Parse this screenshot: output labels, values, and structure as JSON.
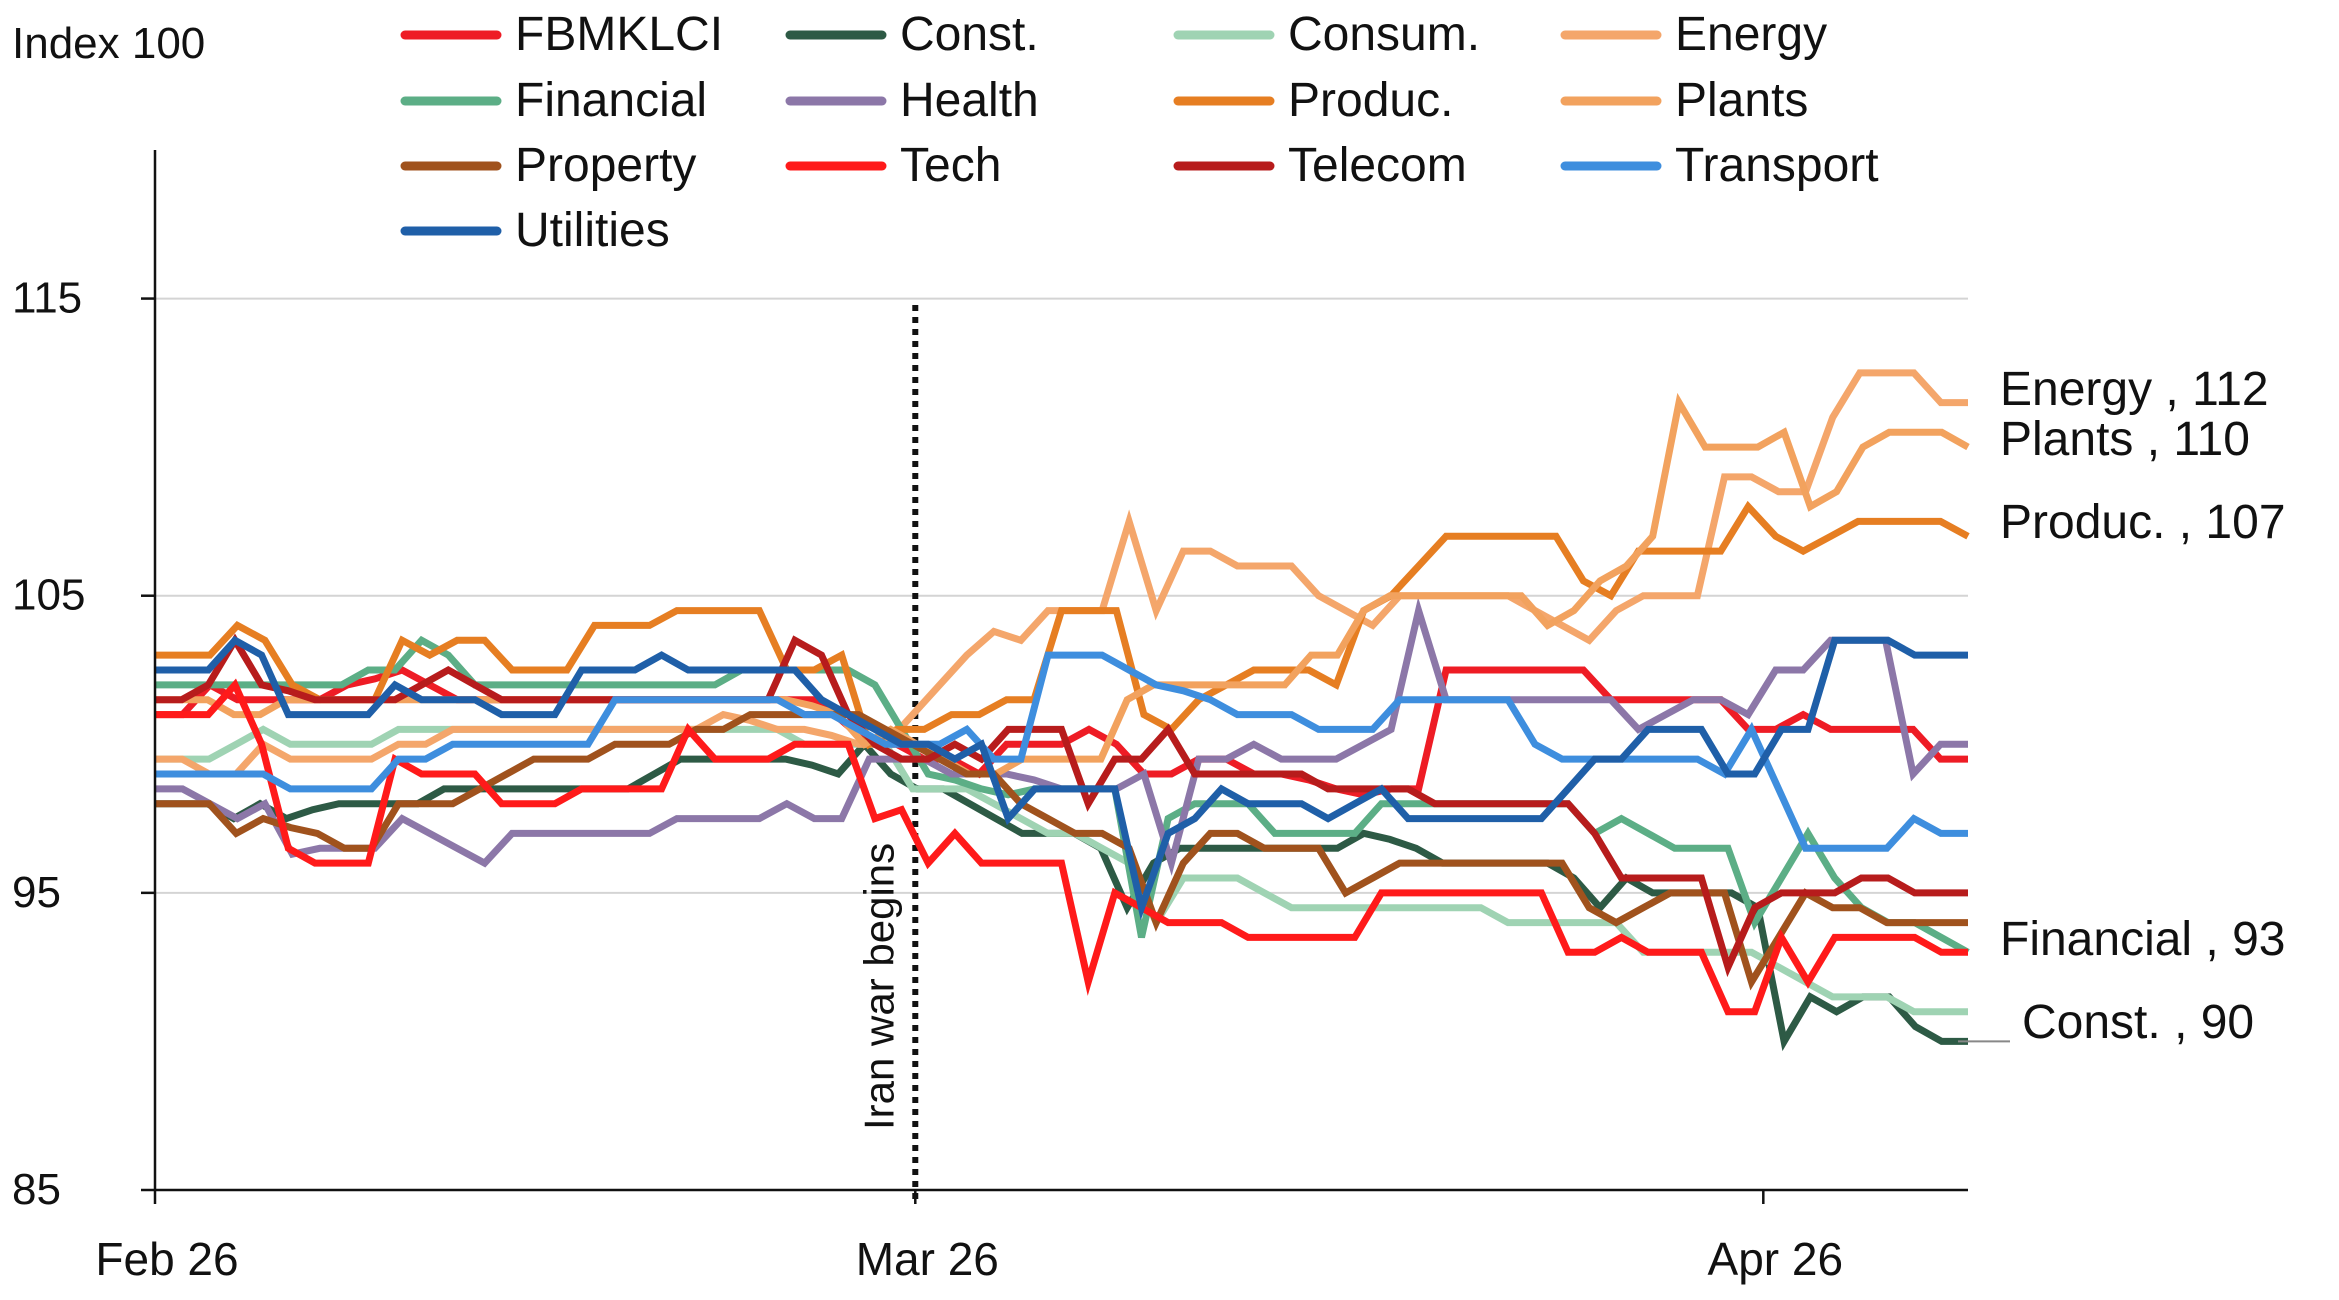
{
  "chart_data": {
    "type": "line",
    "unit_label": "Index 100",
    "y_axis": {
      "ylim": [
        85,
        120
      ],
      "ticks": [
        85,
        95,
        105,
        115
      ],
      "grid": true
    },
    "x_axis": {
      "tick_labels": [
        {
          "label": "Feb 26",
          "x": 0
        },
        {
          "label": "Mar 26",
          "x": 26
        },
        {
          "label": "Apr 26",
          "x": 55
        }
      ],
      "xlim": [
        0,
        62
      ]
    },
    "annotation": {
      "label": "Iran war begins",
      "x": 26,
      "style": "dotted"
    },
    "series": [
      {
        "name": "FBMKLCI",
        "color": "#ee1c25",
        "values": [
          101,
          101,
          102,
          101.5,
          101.5,
          101.5,
          101.5,
          102,
          102.2,
          102.5,
          102,
          101.5,
          101.5,
          101.5,
          101.5,
          101.5,
          101.5,
          101.5,
          101.5,
          101.5,
          101.5,
          101.5,
          101.5,
          101.5,
          101.5,
          100.8,
          100,
          100,
          99.5,
          99.5,
          99,
          100,
          100,
          100,
          100.5,
          100,
          99,
          99,
          99.5,
          99.5,
          99,
          99,
          98.8,
          98.5,
          98.3,
          98.5,
          98.5,
          102.5,
          102.5,
          102.5,
          102.5,
          102.5,
          102.5,
          101.5,
          101.5,
          101.5,
          101.5,
          101.5,
          100.5,
          100.5,
          101,
          100.5,
          100.5,
          100.5,
          100.5,
          99.5,
          99.5
        ]
      },
      {
        "name": "Const.",
        "color": "#2d5a45",
        "values": [
          98,
          98,
          98,
          97.5,
          98,
          97.5,
          97.8,
          98,
          98,
          98,
          98,
          98.5,
          98.5,
          98.5,
          98.5,
          98.5,
          98.5,
          98.5,
          98.5,
          99,
          99.5,
          99.5,
          99.5,
          99.5,
          99.5,
          99.3,
          99,
          100,
          99,
          98.5,
          98.5,
          98,
          97.5,
          97,
          97,
          97,
          96.5,
          94.5,
          96,
          96.5,
          96.5,
          96.5,
          96.5,
          96.5,
          96.5,
          96.5,
          97,
          96.8,
          96.5,
          96,
          96,
          96,
          96,
          96,
          95.5,
          94.5,
          95.5,
          95,
          95,
          95,
          95,
          94.5,
          90,
          91.5,
          91,
          91.5,
          91.5,
          90.5,
          90,
          90
        ]
      },
      {
        "name": "Consum.",
        "color": "#9fd3b3",
        "values": [
          99.5,
          99.5,
          99.5,
          100,
          100.5,
          100,
          100,
          100,
          100,
          100.5,
          100.5,
          100.5,
          100.5,
          100.5,
          100.5,
          100.5,
          100.5,
          100.5,
          100.5,
          100.5,
          100.5,
          100.5,
          100.5,
          100.5,
          100,
          100,
          100,
          100,
          98.5,
          98.5,
          98.5,
          98,
          97.5,
          97,
          97,
          96.5,
          96,
          94,
          95.5,
          95.5,
          95.5,
          95,
          94.5,
          94.5,
          94.5,
          94.5,
          94.5,
          94.5,
          94.5,
          94.5,
          94,
          94,
          94,
          94,
          94,
          93,
          93,
          93,
          93,
          93,
          92.5,
          92,
          91.5,
          91.5,
          91.5,
          91,
          91,
          91
        ]
      },
      {
        "name": "Energy",
        "color": "#f4a66b",
        "values": [
          99.5,
          99.5,
          99,
          99,
          100,
          99.5,
          99.5,
          99.5,
          99.5,
          100,
          100,
          100.5,
          100.5,
          100.5,
          100.5,
          100.5,
          100.5,
          100.5,
          100.5,
          100.5,
          100.5,
          101,
          100.8,
          100.5,
          100.5,
          100.3,
          100,
          100,
          101,
          102,
          103,
          103.8,
          103.5,
          104.5,
          104.5,
          104.5,
          107.5,
          104.5,
          106.5,
          106.5,
          106,
          106,
          106,
          105,
          104.5,
          104,
          105,
          105,
          105,
          105,
          105,
          104.5,
          104,
          103.5,
          104.5,
          105,
          105,
          105,
          109,
          109,
          108.5,
          108.5,
          111,
          112.5,
          112.5,
          112.5,
          111.5,
          111.5
        ]
      },
      {
        "name": "Financial",
        "color": "#5cae86",
        "values": [
          102,
          102,
          102,
          102,
          102,
          102,
          102,
          102,
          102.5,
          102.5,
          103.5,
          103,
          102,
          102,
          102,
          102,
          102,
          102,
          102,
          102,
          102,
          102,
          102.5,
          102.5,
          102.5,
          102.5,
          102.5,
          102,
          100.5,
          99,
          98.8,
          98.5,
          98.3,
          98.5,
          98.5,
          98.5,
          98.5,
          93.5,
          97.5,
          98,
          98,
          98,
          97,
          97,
          97,
          97,
          98,
          98,
          98,
          98,
          98,
          98,
          98,
          98,
          97,
          97.5,
          97,
          96.5,
          96.5,
          96.5,
          94,
          95.5,
          97,
          95.5,
          94.5,
          94,
          94,
          93.5,
          93
        ]
      },
      {
        "name": "Health",
        "color": "#8c77a8",
        "values": [
          98.5,
          98.5,
          98,
          97.5,
          98,
          96.3,
          96.5,
          96.5,
          96.5,
          97.5,
          97,
          96.5,
          96,
          97,
          97,
          97,
          97,
          97,
          97,
          97.5,
          97.5,
          97.5,
          97.5,
          98,
          97.5,
          97.5,
          99.5,
          99.5,
          99.5,
          99,
          99,
          99,
          98.8,
          98.5,
          98.5,
          98.5,
          99,
          96,
          99.5,
          99.5,
          100,
          99.5,
          99.5,
          99.5,
          100,
          100.5,
          104.5,
          101.5,
          101.5,
          101.5,
          101.5,
          101.5,
          101.5,
          101.5,
          100.5,
          101,
          101.5,
          101.5,
          101,
          102.5,
          102.5,
          103.5,
          103.5,
          103.5,
          99,
          100,
          100
        ]
      },
      {
        "name": "Produc.",
        "color": "#e67e22",
        "values": [
          103,
          103,
          103,
          104,
          103.5,
          102,
          101.5,
          101.5,
          101.5,
          103.5,
          103,
          103.5,
          103.5,
          102.5,
          102.5,
          102.5,
          104,
          104,
          104,
          104.5,
          104.5,
          104.5,
          104.5,
          102.5,
          102.5,
          103,
          100,
          100.5,
          100.5,
          101,
          101,
          101.5,
          101.5,
          104.5,
          104.5,
          104.5,
          101,
          100.5,
          101.5,
          102,
          102.5,
          102.5,
          102.5,
          102,
          104.5,
          105,
          106,
          107,
          107,
          107,
          107,
          107,
          105.5,
          105,
          106.5,
          106.5,
          106.5,
          106.5,
          108,
          107,
          106.5,
          107,
          107.5,
          107.5,
          107.5,
          107.5,
          107
        ]
      },
      {
        "name": "Plants",
        "color": "#f2a25e",
        "values": [
          101.5,
          101.5,
          101.5,
          101,
          101,
          101.5,
          101.5,
          101.5,
          101.5,
          101.5,
          101.5,
          101.5,
          101.5,
          101.5,
          101.5,
          101.5,
          101.5,
          101.5,
          101.5,
          101.5,
          101.5,
          101.5,
          101.5,
          101.5,
          101.5,
          101.3,
          101,
          100,
          100.5,
          100,
          99.5,
          99,
          99,
          99.5,
          99.5,
          99.5,
          99.5,
          101.5,
          102,
          102,
          102,
          102,
          102,
          102,
          103,
          103,
          104.5,
          105,
          105,
          105,
          105,
          105,
          105,
          104,
          104.5,
          105.5,
          106,
          107,
          111.5,
          110,
          110,
          110,
          110.5,
          108,
          108.5,
          110,
          110.5,
          110.5,
          110.5,
          110
        ]
      },
      {
        "name": "Property",
        "color": "#a0521d",
        "values": [
          98,
          98,
          98,
          97,
          97.5,
          97.2,
          97,
          96.5,
          96.5,
          98,
          98,
          98,
          98.5,
          99,
          99.5,
          99.5,
          99.5,
          100,
          100,
          100,
          100.5,
          100.5,
          101,
          101,
          101,
          101,
          101,
          100.5,
          100,
          99.5,
          99,
          99,
          98,
          97.5,
          97,
          97,
          96.5,
          94,
          96,
          97,
          97,
          96.5,
          96.5,
          96.5,
          95,
          95.5,
          96,
          96,
          96,
          96,
          96,
          96,
          96,
          94.5,
          94,
          94.5,
          95,
          95,
          95,
          92,
          93.5,
          95,
          94.5,
          94.5,
          94,
          94,
          94,
          94
        ]
      },
      {
        "name": "Tech",
        "color": "#ff1a1a",
        "values": [
          101,
          101,
          101,
          102,
          100,
          96.5,
          96,
          96,
          96,
          99.5,
          99,
          99,
          99,
          98,
          98,
          98,
          98.5,
          98.5,
          98.5,
          98.5,
          100.5,
          99.5,
          99.5,
          99.5,
          100,
          100,
          100,
          97.5,
          97.8,
          96,
          97,
          96,
          96,
          96,
          96,
          92,
          95,
          94.5,
          94,
          94,
          94,
          93.5,
          93.5,
          93.5,
          93.5,
          93.5,
          95,
          95,
          95,
          95,
          95,
          95,
          95,
          93,
          93,
          93.5,
          93,
          93,
          93,
          91,
          91,
          93.5,
          92,
          93.5,
          93.5,
          93.5,
          93.5,
          93,
          93
        ]
      },
      {
        "name": "Telecom",
        "color": "#b71c1c",
        "values": [
          101.5,
          101.5,
          102,
          103.5,
          102,
          101.8,
          101.5,
          101.5,
          101.5,
          101.5,
          102,
          102.5,
          102,
          101.5,
          101.5,
          101.5,
          101.5,
          101.5,
          101.5,
          101.5,
          101.5,
          101.5,
          101.5,
          101.5,
          103.5,
          103,
          101,
          100,
          99.5,
          99.5,
          100,
          99.5,
          100.5,
          100.5,
          100.5,
          98,
          99.5,
          99.5,
          100.5,
          99,
          99,
          99,
          99,
          99,
          98.5,
          98.5,
          98.5,
          98.5,
          98,
          98,
          98,
          98,
          98,
          98,
          97,
          95.5,
          95.5,
          95.5,
          95.5,
          92.5,
          94.5,
          95,
          95,
          95,
          95.5,
          95.5,
          95,
          95,
          95
        ]
      },
      {
        "name": "Transport",
        "color": "#3e8ede",
        "values": [
          99,
          99,
          99,
          99,
          99,
          98.5,
          98.5,
          98.5,
          98.5,
          99.5,
          99.5,
          100,
          100,
          100,
          100,
          100,
          100,
          101.5,
          101.5,
          101.5,
          101.5,
          101.5,
          101.5,
          101.5,
          101,
          101,
          100.5,
          100,
          100,
          100,
          100.5,
          99.5,
          99.5,
          103,
          103,
          103,
          102.5,
          102,
          101.8,
          101.5,
          101,
          101,
          101,
          100.5,
          100.5,
          100.5,
          101.5,
          101.5,
          101.5,
          101.5,
          101.5,
          100,
          99.5,
          99.5,
          99.5,
          99.5,
          99.5,
          99.5,
          99,
          100.5,
          98.5,
          96.5,
          96.5,
          96.5,
          96.5,
          97.5,
          97,
          97
        ]
      },
      {
        "name": "Utilities",
        "color": "#1f5fa8",
        "values": [
          102.5,
          102.5,
          102.5,
          103.5,
          103,
          101,
          101,
          101,
          101,
          102,
          101.5,
          101.5,
          101.5,
          101,
          101,
          101,
          102.5,
          102.5,
          102.5,
          103,
          102.5,
          102.5,
          102.5,
          102.5,
          102.5,
          101.5,
          101,
          100.5,
          100,
          100,
          99.5,
          100,
          97.5,
          98.5,
          98.5,
          98.5,
          98.5,
          94.5,
          97,
          97.5,
          98.5,
          98,
          98,
          98,
          97.5,
          98,
          98.5,
          97.5,
          97.5,
          97.5,
          97.5,
          97.5,
          97.5,
          98.5,
          99.5,
          99.5,
          100.5,
          100.5,
          100.5,
          99,
          99,
          100.5,
          100.5,
          103.5,
          103.5,
          103.5,
          103,
          103,
          103
        ]
      }
    ],
    "end_labels": [
      {
        "label": "Energy , 112",
        "series": "Energy"
      },
      {
        "label": "Plants , 110",
        "series": "Plants"
      },
      {
        "label": "Produc. , 107",
        "series": "Produc."
      },
      {
        "label": "Financial , 93",
        "series": "Financial"
      },
      {
        "label": "Const. , 90",
        "series": "Const."
      }
    ]
  }
}
